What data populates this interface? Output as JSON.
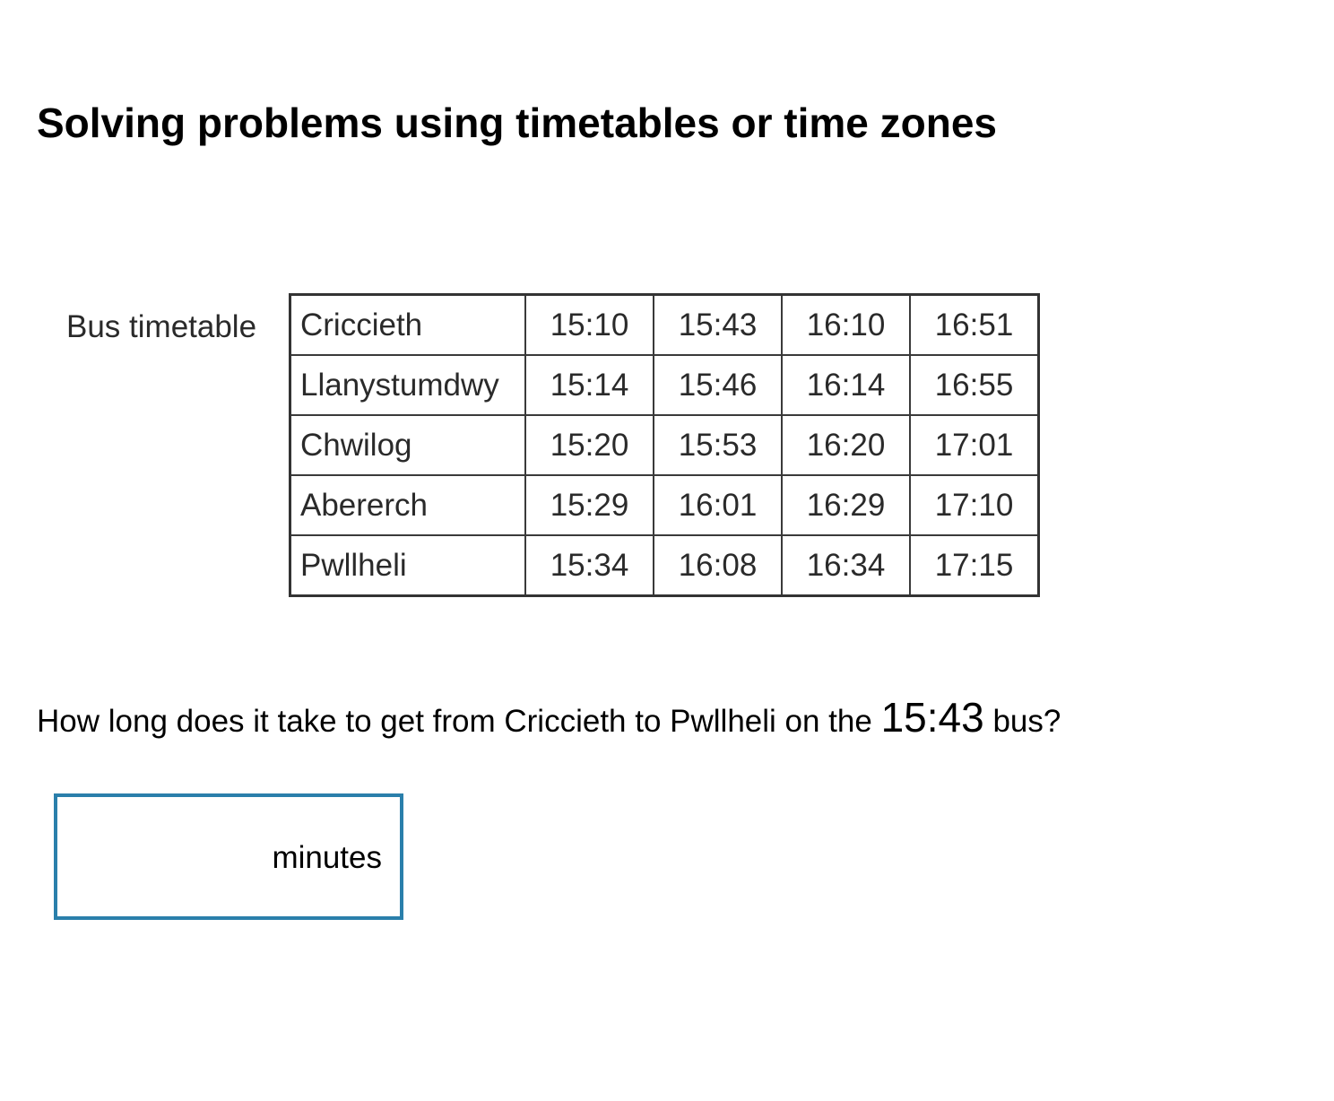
{
  "page": {
    "title": "Solving problems using timetables or time zones"
  },
  "timetable": {
    "caption": "Bus timetable",
    "rows": [
      {
        "stop": "Criccieth",
        "times": [
          "15:10",
          "15:43",
          "16:10",
          "16:51"
        ]
      },
      {
        "stop": "Llanystumdwy",
        "times": [
          "15:14",
          "15:46",
          "16:14",
          "16:55"
        ]
      },
      {
        "stop": "Chwilog",
        "times": [
          "15:20",
          "15:53",
          "16:20",
          "17:01"
        ]
      },
      {
        "stop": "Abererch",
        "times": [
          "15:29",
          "16:01",
          "16:29",
          "17:10"
        ]
      },
      {
        "stop": "Pwllheli",
        "times": [
          "15:34",
          "16:08",
          "16:34",
          "17:15"
        ]
      }
    ]
  },
  "question": {
    "text_before": "How long does it take to get from Criccieth to Pwllheli on the",
    "highlight_time": "15:43",
    "text_after": "bus?"
  },
  "answer": {
    "value": "",
    "unit": "minutes"
  },
  "colors": {
    "answer_border": "#2a7fab"
  }
}
